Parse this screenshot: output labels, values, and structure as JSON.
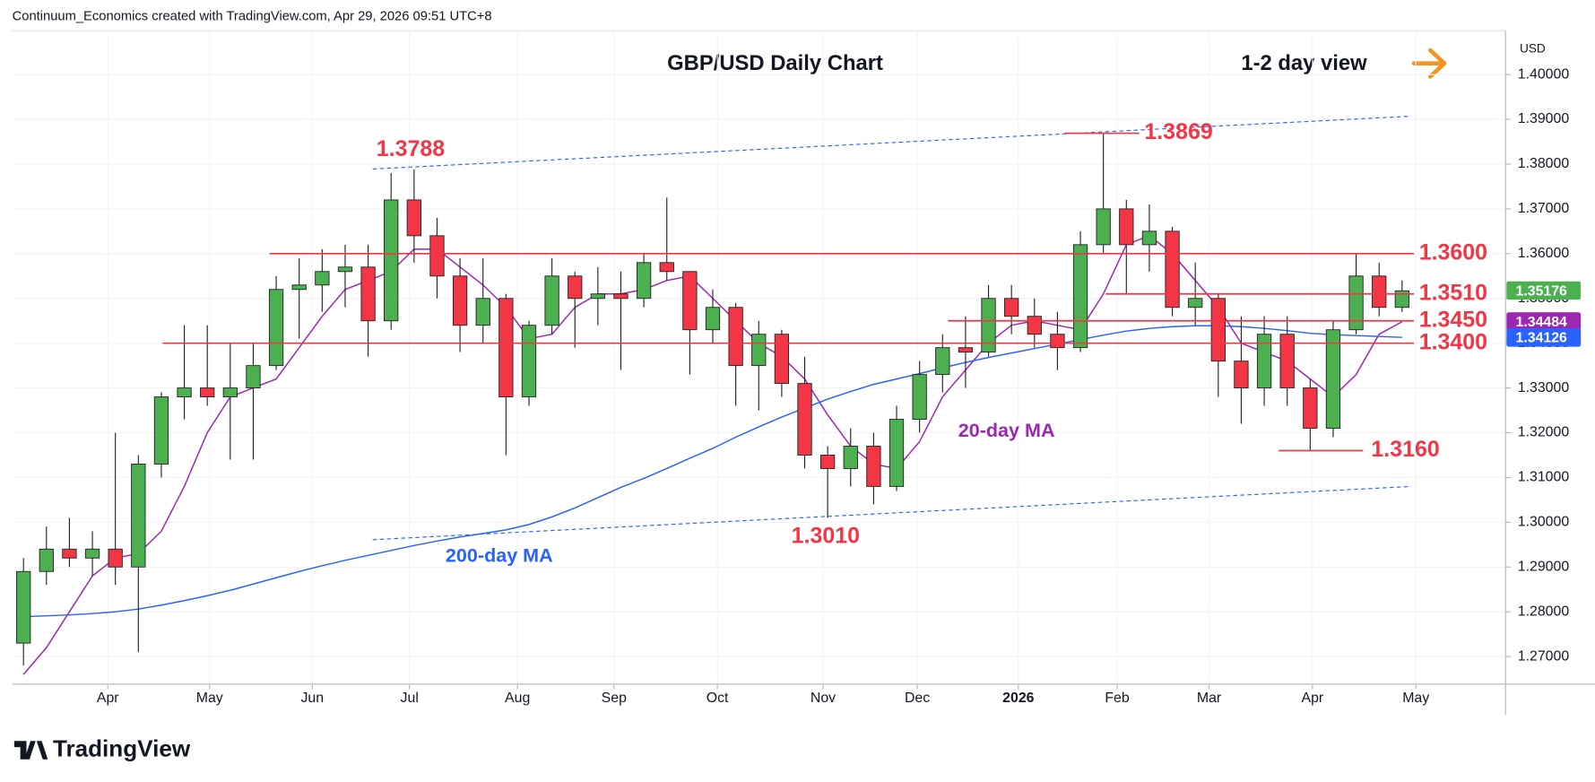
{
  "header": {
    "attribution": "Continuum_Economics created with TradingView.com, Apr 29, 2026 09:51 UTC+8",
    "logo": "TradingView"
  },
  "chart_data": {
    "type": "candlestick",
    "title": "GBP/USD Daily Chart",
    "subtitle": "1-2 day view",
    "y_axis_label": "USD",
    "categories": [
      null,
      null,
      null,
      null,
      null,
      null,
      null,
      null,
      null,
      null,
      null,
      null,
      null,
      null,
      null,
      null,
      null,
      null,
      null,
      null,
      null,
      null,
      null,
      null,
      null,
      null,
      null,
      null,
      null,
      null,
      null,
      null,
      null,
      null,
      null,
      null,
      null,
      null,
      null,
      null,
      null,
      null,
      null,
      null,
      null,
      null,
      null,
      null,
      null,
      null,
      null,
      null,
      null,
      null,
      null,
      null,
      null,
      null,
      null,
      null,
      null
    ],
    "open": [
      1.273,
      1.289,
      1.294,
      1.292,
      1.294,
      1.29,
      1.313,
      1.328,
      1.33,
      1.328,
      1.33,
      1.335,
      1.352,
      1.353,
      1.356,
      1.357,
      1.345,
      1.372,
      1.364,
      1.355,
      1.344,
      1.35,
      1.328,
      1.344,
      1.355,
      1.35,
      1.351,
      1.35,
      1.358,
      1.356,
      1.343,
      1.348,
      1.335,
      1.342,
      1.331,
      1.315,
      1.312,
      1.317,
      1.308,
      1.323,
      1.333,
      1.339,
      1.338,
      1.35,
      1.346,
      1.342,
      1.339,
      1.362,
      1.37,
      1.362,
      1.365,
      1.348,
      1.35,
      1.336,
      1.33,
      1.342,
      1.33,
      1.321,
      1.343,
      1.355,
      1.348
    ],
    "high": [
      1.292,
      1.299,
      1.301,
      1.298,
      1.32,
      1.315,
      1.329,
      1.344,
      1.344,
      1.34,
      1.34,
      1.355,
      1.359,
      1.361,
      1.362,
      1.362,
      1.378,
      1.3788,
      1.368,
      1.359,
      1.359,
      1.351,
      1.345,
      1.359,
      1.356,
      1.357,
      1.356,
      1.36,
      1.3725,
      1.356,
      1.352,
      1.349,
      1.345,
      1.343,
      1.337,
      1.317,
      1.321,
      1.32,
      1.326,
      1.336,
      1.342,
      1.346,
      1.353,
      1.353,
      1.35,
      1.347,
      1.365,
      1.3869,
      1.372,
      1.371,
      1.366,
      1.358,
      1.351,
      1.346,
      1.346,
      1.346,
      1.332,
      1.345,
      1.36,
      1.358,
      1.354
    ],
    "low": [
      1.268,
      1.286,
      1.29,
      1.288,
      1.286,
      1.271,
      1.31,
      1.323,
      1.326,
      1.314,
      1.314,
      1.334,
      1.341,
      1.347,
      1.348,
      1.337,
      1.343,
      1.358,
      1.35,
      1.338,
      1.34,
      1.315,
      1.326,
      1.342,
      1.339,
      1.344,
      1.334,
      1.348,
      1.354,
      1.333,
      1.34,
      1.326,
      1.325,
      1.328,
      1.312,
      1.301,
      1.308,
      1.304,
      1.307,
      1.32,
      1.329,
      1.33,
      1.337,
      1.342,
      1.339,
      1.334,
      1.338,
      1.36,
      1.351,
      1.356,
      1.346,
      1.344,
      1.328,
      1.322,
      1.326,
      1.326,
      1.316,
      1.319,
      1.342,
      1.346,
      1.347
    ],
    "close": [
      1.289,
      1.294,
      1.292,
      1.294,
      1.29,
      1.313,
      1.328,
      1.33,
      1.328,
      1.33,
      1.335,
      1.352,
      1.353,
      1.356,
      1.357,
      1.345,
      1.372,
      1.364,
      1.355,
      1.344,
      1.35,
      1.328,
      1.344,
      1.355,
      1.35,
      1.351,
      1.35,
      1.358,
      1.356,
      1.343,
      1.348,
      1.335,
      1.342,
      1.331,
      1.315,
      1.312,
      1.317,
      1.308,
      1.323,
      1.333,
      1.339,
      1.338,
      1.35,
      1.346,
      1.342,
      1.339,
      1.362,
      1.37,
      1.362,
      1.365,
      1.348,
      1.35,
      1.336,
      1.33,
      1.342,
      1.33,
      1.321,
      1.343,
      1.355,
      1.348,
      1.3517
    ],
    "up_color": "#4caf50",
    "down_color": "#f23645",
    "series": [
      {
        "name": "20-day MA",
        "color": "#9c27b0",
        "values": [
          1.266,
          1.272,
          1.28,
          1.288,
          1.292,
          1.293,
          1.298,
          1.308,
          1.32,
          1.328,
          1.33,
          1.332,
          1.339,
          1.346,
          1.352,
          1.354,
          1.356,
          1.361,
          1.361,
          1.357,
          1.353,
          1.348,
          1.341,
          1.342,
          1.348,
          1.351,
          1.351,
          1.352,
          1.354,
          1.355,
          1.35,
          1.345,
          1.34,
          1.337,
          1.332,
          1.324,
          1.317,
          1.313,
          1.312,
          1.318,
          1.328,
          1.334,
          1.34,
          1.344,
          1.345,
          1.344,
          1.343,
          1.351,
          1.362,
          1.364,
          1.36,
          1.354,
          1.348,
          1.34,
          1.338,
          1.336,
          1.332,
          1.328,
          1.333,
          1.342,
          1.3448
        ]
      },
      {
        "name": "200-day MA",
        "color": "#2962ff",
        "values": [
          1.2789,
          1.2791,
          1.2793,
          1.2796,
          1.28,
          1.2806,
          1.2815,
          1.2825,
          1.2836,
          1.2848,
          1.2862,
          1.2876,
          1.289,
          1.2903,
          1.2915,
          1.2926,
          1.2937,
          1.2948,
          1.2958,
          1.2967,
          1.2975,
          1.2983,
          1.2995,
          1.3012,
          1.3032,
          1.3055,
          1.3078,
          1.3098,
          1.312,
          1.3143,
          1.3165,
          1.319,
          1.3213,
          1.3235,
          1.3255,
          1.3275,
          1.3292,
          1.3308,
          1.332,
          1.3332,
          1.3345,
          1.3357,
          1.3368,
          1.3378,
          1.3388,
          1.3398,
          1.3408,
          1.3418,
          1.3427,
          1.3433,
          1.3437,
          1.3439,
          1.3439,
          1.3437,
          1.3433,
          1.3428,
          1.3422,
          1.3419,
          1.3417,
          1.3415,
          1.3413
        ]
      }
    ],
    "levels": [
      {
        "value": 1.3869,
        "label": "1.3869"
      },
      {
        "value": 1.36,
        "label": "1.3600"
      },
      {
        "value": 1.351,
        "label": "1.3510"
      },
      {
        "value": 1.345,
        "label": "1.3450"
      },
      {
        "value": 1.34,
        "label": "1.3400"
      },
      {
        "value": 1.316,
        "label": "1.3160"
      }
    ],
    "level_color": "#f23645",
    "annotations": [
      {
        "value": 1.3788,
        "label": "1.3788"
      },
      {
        "value": 1.301,
        "label": "1.3010"
      }
    ],
    "trendlines": [
      {
        "x": [
          15.2,
          60.4
        ],
        "values": [
          1.3789,
          1.3907
        ]
      },
      {
        "x": [
          15.2,
          60.4
        ],
        "values": [
          1.2961,
          1.308
        ]
      }
    ],
    "trendline_color": "#2962ff",
    "price_labels": [
      {
        "value": 1.35176,
        "label": "1.35176",
        "color": "#4caf50"
      },
      {
        "value": 1.34484,
        "label": "1.34484",
        "color": "#9c27b0"
      },
      {
        "value": 1.34126,
        "label": "1.34126",
        "color": "#2962ff"
      }
    ],
    "xlim": [
      -0.49,
      64.5
    ],
    "ylim": [
      1.264,
      1.41
    ],
    "xticks": [
      {
        "value": 3.67,
        "label": "Apr"
      },
      {
        "value": 8.1,
        "label": "May"
      },
      {
        "value": 12.57,
        "label": "Jun"
      },
      {
        "value": 16.8,
        "label": "Jul"
      },
      {
        "value": 21.5,
        "label": "Aug"
      },
      {
        "value": 25.7,
        "label": "Sep"
      },
      {
        "value": 30.2,
        "label": "Oct"
      },
      {
        "value": 34.8,
        "label": "Nov"
      },
      {
        "value": 38.9,
        "label": "Dec"
      },
      {
        "value": 43.3,
        "label": "2026"
      },
      {
        "value": 47.6,
        "label": "Feb"
      },
      {
        "value": 51.6,
        "label": "Mar"
      },
      {
        "value": 56.1,
        "label": "Apr"
      },
      {
        "value": 60.6,
        "label": "May"
      }
    ],
    "yticks": [
      {
        "value": 1.27,
        "label": "1.27000"
      },
      {
        "value": 1.28,
        "label": "1.28000"
      },
      {
        "value": 1.29,
        "label": "1.29000"
      },
      {
        "value": 1.3,
        "label": "1.30000"
      },
      {
        "value": 1.31,
        "label": "1.31000"
      },
      {
        "value": 1.32,
        "label": "1.32000"
      },
      {
        "value": 1.33,
        "label": "1.33000"
      },
      {
        "value": 1.34,
        "label": "1.34000"
      },
      {
        "value": 1.35,
        "label": "1.35000"
      },
      {
        "value": 1.36,
        "label": "1.36000"
      },
      {
        "value": 1.37,
        "label": "1.37000"
      },
      {
        "value": 1.38,
        "label": "1.38000"
      },
      {
        "value": 1.39,
        "label": "1.39000"
      },
      {
        "value": 1.4,
        "label": "1.40000"
      }
    ],
    "grid": true
  }
}
